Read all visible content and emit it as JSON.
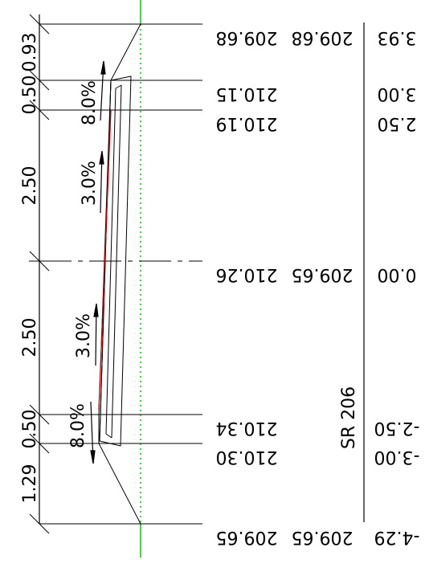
{
  "dimensions_left": [
    "0.93",
    "0.50",
    "2.50",
    "2.50",
    "0.50",
    "1.29"
  ],
  "slope_labels": [
    "8.0%",
    "3.0%",
    "3.0%",
    "8.0%"
  ],
  "elevations_a": [
    "209.68",
    "210.15",
    "210.19",
    "210.26",
    "210.34",
    "210.30",
    "209.65"
  ],
  "elevations_b": [
    "209.68",
    "209.65",
    "209.65"
  ],
  "offsets": [
    "3.93",
    "3.00",
    "2.50",
    "0.00",
    "-2.50",
    "-3.00",
    "-4.29"
  ],
  "road_label": "SR 206",
  "colors": {
    "line": "#000000",
    "centerline": "#00cc00",
    "profile": "#cc0000",
    "background": "#ffffff"
  }
}
